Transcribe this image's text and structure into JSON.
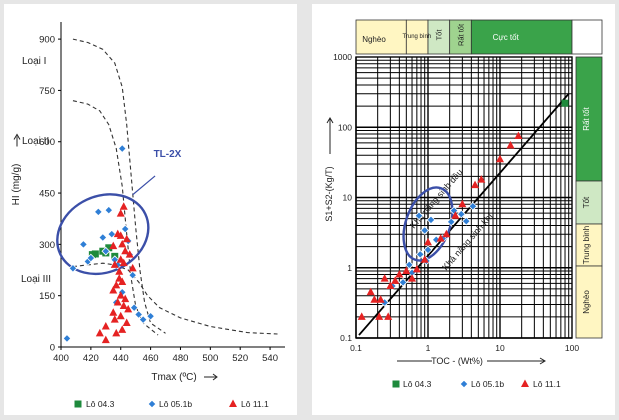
{
  "colors": {
    "background": "#e6e6e6",
    "lo_043": "#1e8a3c",
    "lo_051b": "#2f7fd6",
    "lo_111": "#e52222",
    "ellipse": "#3b4fa8",
    "yellow": "#fff6c2",
    "light_green": "#cfe8c4",
    "mid_green": "#9fd38f",
    "dark_green": "#3aa34a"
  },
  "chart_data": [
    {
      "type": "scatter",
      "xlabel": "Tmax (ºC)",
      "ylabel": "HI (mg/g)",
      "xlim": [
        400,
        550
      ],
      "ylim": [
        0,
        950
      ],
      "xticks": [
        "400",
        "420",
        "440",
        "460",
        "480",
        "500",
        "520",
        "540"
      ],
      "yticks": [
        "0",
        "150",
        "300",
        "450",
        "600",
        "750",
        "900"
      ],
      "region_labels": [
        "Loại I",
        "Loại II",
        "Loại III"
      ],
      "annotation": "TL-2X",
      "series": [
        {
          "name": "Lô 04.3",
          "marker": "square",
          "points": [
            [
              421,
              270
            ],
            [
              423,
              272
            ],
            [
              428,
              280
            ],
            [
              430,
              275
            ],
            [
              432,
              290
            ],
            [
              436,
              265
            ]
          ]
        },
        {
          "name": "Lô 05.1b",
          "marker": "diamond",
          "points": [
            [
              404,
              25
            ],
            [
              408,
              230
            ],
            [
              415,
              300
            ],
            [
              418,
              250
            ],
            [
              420,
              260
            ],
            [
              425,
              395
            ],
            [
              428,
              320
            ],
            [
              430,
              280
            ],
            [
              432,
              400
            ],
            [
              434,
              330
            ],
            [
              436,
              255
            ],
            [
              438,
              240
            ],
            [
              441,
              580
            ],
            [
              443,
              345
            ],
            [
              445,
              310
            ],
            [
              446,
              270
            ],
            [
              448,
              210
            ],
            [
              449,
              115
            ],
            [
              452,
              95
            ],
            [
              455,
              80
            ],
            [
              460,
              90
            ],
            [
              441,
              160
            ],
            [
              437,
              130
            ]
          ]
        },
        {
          "name": "Lô 11.1",
          "marker": "triangle",
          "points": [
            [
              442,
              410
            ],
            [
              440,
              390
            ],
            [
              438,
              330
            ],
            [
              440,
              325
            ],
            [
              444,
              315
            ],
            [
              441,
              300
            ],
            [
              435,
              295
            ],
            [
              443,
              280
            ],
            [
              446,
              270
            ],
            [
              440,
              255
            ],
            [
              436,
              240
            ],
            [
              442,
              245
            ],
            [
              448,
              230
            ],
            [
              439,
              200
            ],
            [
              441,
              190
            ],
            [
              437,
              180
            ],
            [
              435,
              165
            ],
            [
              440,
              150
            ],
            [
              443,
              140
            ],
            [
              438,
              130
            ],
            [
              442,
              120
            ],
            [
              445,
              110
            ],
            [
              435,
              100
            ],
            [
              440,
              90
            ],
            [
              436,
              80
            ],
            [
              444,
              70
            ],
            [
              430,
              60
            ],
            [
              441,
              50
            ],
            [
              437,
              40
            ],
            [
              430,
              20
            ],
            [
              426,
              40
            ],
            [
              439,
              220
            ]
          ]
        }
      ]
    },
    {
      "type": "scatter",
      "xlabel": "TOC - (Wt%)",
      "ylabel": "S1+S2-(Kg/T)",
      "x_scale": "log",
      "y_scale": "log",
      "xlim": [
        0.1,
        100
      ],
      "ylim": [
        0.1,
        1000
      ],
      "xticks": [
        "0.1",
        "1",
        "10",
        "100"
      ],
      "yticks": [
        "0.1",
        "1",
        "10",
        "100",
        "1000"
      ],
      "top_bands": [
        "Nghèo",
        "Trung bình",
        "Tốt",
        "Rất tốt",
        "Cực tốt"
      ],
      "side_bands": [
        "Rất tốt",
        "Tốt",
        "Trung bình",
        "Nghèo"
      ],
      "annotations": [
        "Khả năng sinh dầu",
        "Khả năng sinh khí"
      ],
      "series": [
        {
          "name": "Lô 04.3",
          "marker": "square",
          "points": [
            [
              80,
              220
            ]
          ]
        },
        {
          "name": "Lô 05.1b",
          "marker": "diamond",
          "points": [
            [
              0.75,
              5.5
            ],
            [
              0.9,
              3.4
            ],
            [
              1.1,
              4.8
            ],
            [
              1.3,
              2.5
            ],
            [
              1.6,
              2.6
            ],
            [
              2.1,
              4.5
            ],
            [
              2.3,
              6.5
            ],
            [
              2.9,
              5.8
            ],
            [
              3.4,
              4.6
            ],
            [
              1.0,
              1.8
            ],
            [
              0.6,
              0.85
            ],
            [
              0.45,
              0.62
            ],
            [
              0.95,
              1.25
            ],
            [
              0.55,
              1.1
            ],
            [
              4.2,
              7.5
            ],
            [
              0.25,
              0.32
            ],
            [
              0.32,
              0.55
            ],
            [
              0.78,
              1.55
            ]
          ]
        },
        {
          "name": "Lô 11.1",
          "marker": "triangle",
          "points": [
            [
              0.12,
              0.2
            ],
            [
              0.16,
              0.45
            ],
            [
              0.18,
              0.35
            ],
            [
              0.21,
              0.2
            ],
            [
              0.25,
              0.7
            ],
            [
              0.3,
              0.55
            ],
            [
              0.35,
              0.65
            ],
            [
              0.4,
              0.8
            ],
            [
              0.5,
              0.9
            ],
            [
              0.6,
              0.7
            ],
            [
              0.7,
              0.95
            ],
            [
              0.28,
              0.2
            ],
            [
              0.22,
              0.35
            ],
            [
              0.9,
              1.3
            ],
            [
              1.0,
              2.3
            ],
            [
              1.5,
              2.6
            ],
            [
              1.8,
              3.0
            ],
            [
              2.4,
              5.5
            ],
            [
              3.0,
              8
            ],
            [
              4.5,
              15
            ],
            [
              5.5,
              18
            ],
            [
              10,
              35
            ],
            [
              14,
              55
            ],
            [
              18,
              75
            ]
          ]
        }
      ]
    }
  ]
}
